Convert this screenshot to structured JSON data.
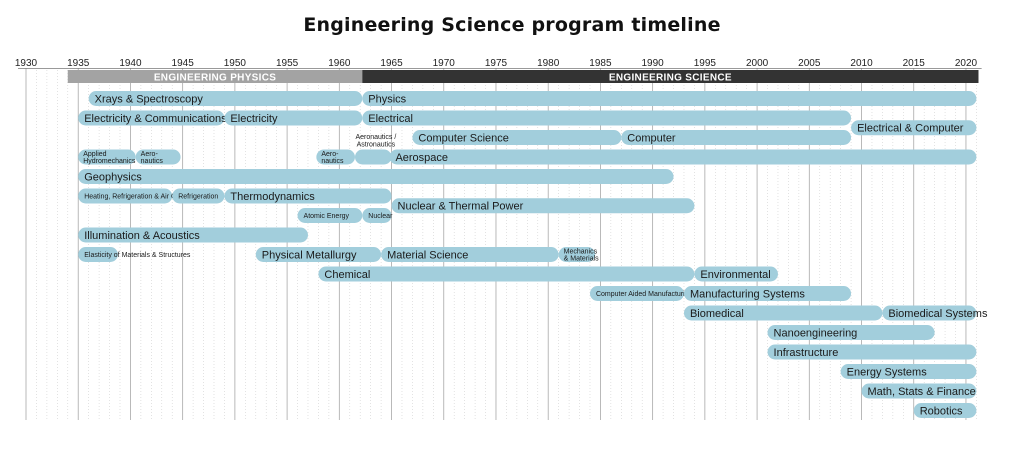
{
  "title": "Engineering Science program timeline",
  "chart_data": {
    "type": "timeline",
    "x_range": [
      1930,
      2021
    ],
    "ticks": [
      1930,
      1935,
      1940,
      1945,
      1950,
      1955,
      1960,
      1965,
      1970,
      1975,
      1980,
      1985,
      1990,
      1995,
      2000,
      2005,
      2010,
      2015,
      2020
    ],
    "eras": [
      {
        "label": "ENGINEERING PHYSICS",
        "start": 1934,
        "end": 1962.2,
        "color": "#a3a3a3"
      },
      {
        "label": "ENGINEERING SCIENCE",
        "start": 1962.2,
        "end": 2021.2,
        "color": "#333333"
      }
    ],
    "bars": [
      {
        "label": "Xrays & Spectroscopy",
        "start": 1936,
        "end": 1962.2,
        "row": 0,
        "size": 11
      },
      {
        "label": "Physics",
        "start": 1962.2,
        "end": 2021,
        "row": 0,
        "size": 11
      },
      {
        "label": "Electricity & Communications",
        "start": 1935,
        "end": 1949,
        "row": 1,
        "size": 11
      },
      {
        "label": "Electricity",
        "start": 1949,
        "end": 1962.2,
        "row": 1,
        "size": 11
      },
      {
        "label": "Electrical",
        "start": 1962.2,
        "end": 2009,
        "row": 1,
        "size": 11
      },
      {
        "label": "Electrical & Computer",
        "start": 2009,
        "end": 2021,
        "row": 1.5,
        "size": 11
      },
      {
        "label": "Computer Science",
        "start": 1967,
        "end": 1987,
        "row": 2,
        "size": 11
      },
      {
        "label": "Computer",
        "start": 1987,
        "end": 2009,
        "row": 2,
        "size": 11
      },
      {
        "label": "Applied Hydromechanics",
        "start": 1935,
        "end": 1940.5,
        "row": 3,
        "size": 7
      },
      {
        "label": "Aero-nautics",
        "start": 1940.5,
        "end": 1944.8,
        "row": 3,
        "size": 7
      },
      {
        "label": "Aero-nautics",
        "start": 1957.8,
        "end": 1961.5,
        "row": 3,
        "size": 7
      },
      {
        "label": "",
        "start": 1961.5,
        "end": 1965,
        "row": 3,
        "size": 7
      },
      {
        "label": "Aerospace",
        "start": 1964.8,
        "end": 2021,
        "row": 3,
        "size": 11
      },
      {
        "label": "Geophysics",
        "start": 1935,
        "end": 1992,
        "row": 4,
        "size": 11
      },
      {
        "label": "Heating, Refrigeration & Air Conditioning",
        "start": 1935,
        "end": 1944,
        "row": 5,
        "size": 7
      },
      {
        "label": "Refrigeration",
        "start": 1944,
        "end": 1949,
        "row": 5,
        "size": 7
      },
      {
        "label": "Thermodynamics",
        "start": 1949,
        "end": 1965,
        "row": 5,
        "size": 11
      },
      {
        "label": "Atomic Energy",
        "start": 1956,
        "end": 1962.2,
        "row": 6,
        "size": 7
      },
      {
        "label": "Nuclear",
        "start": 1962.2,
        "end": 1965,
        "row": 6,
        "size": 7
      },
      {
        "label": "Nuclear & Thermal Power",
        "start": 1965,
        "end": 1994,
        "row": 5.5,
        "size": 11
      },
      {
        "label": "Illumination & Acoustics",
        "start": 1935,
        "end": 1957,
        "row": 7,
        "size": 11
      },
      {
        "label": "Elasticity of Materials & Structures",
        "start": 1935,
        "end": 1938.8,
        "row": 8,
        "size": 7
      },
      {
        "label": "Physical Metallurgy",
        "start": 1952,
        "end": 1964,
        "row": 8,
        "size": 11
      },
      {
        "label": "Material Science",
        "start": 1964,
        "end": 1981,
        "row": 8,
        "size": 11
      },
      {
        "label": "Mechanics & Materials",
        "start": 1981,
        "end": 1984.5,
        "row": 8,
        "size": 7
      },
      {
        "label": "Chemical",
        "start": 1958,
        "end": 1994,
        "row": 9,
        "size": 11
      },
      {
        "label": "Environmental",
        "start": 1994,
        "end": 2002,
        "row": 9,
        "size": 11
      },
      {
        "label": "Computer Aided Manufacturing",
        "start": 1984,
        "end": 1993,
        "row": 10,
        "size": 7
      },
      {
        "label": "Manufacturing Systems",
        "start": 1993,
        "end": 2009,
        "row": 10,
        "size": 11
      },
      {
        "label": "Biomedical",
        "start": 1993,
        "end": 2012,
        "row": 11,
        "size": 11
      },
      {
        "label": "Biomedical Systems",
        "start": 2012,
        "end": 2021,
        "row": 11,
        "size": 11
      },
      {
        "label": "Nanoengineering",
        "start": 2001,
        "end": 2017,
        "row": 12,
        "size": 11
      },
      {
        "label": "Infrastructure",
        "start": 2001,
        "end": 2021,
        "row": 13,
        "size": 11
      },
      {
        "label": "Energy Systems",
        "start": 2008,
        "end": 2021,
        "row": 14,
        "size": 11
      },
      {
        "label": "Math, Stats & Finance",
        "start": 2010,
        "end": 2021,
        "row": 15,
        "size": 11
      },
      {
        "label": "Robotics",
        "start": 2015,
        "end": 2021,
        "row": 16,
        "size": 11
      }
    ],
    "annotations": [
      {
        "label": "Aeronautics / Astronautics",
        "x": 1963.5
      }
    ]
  }
}
